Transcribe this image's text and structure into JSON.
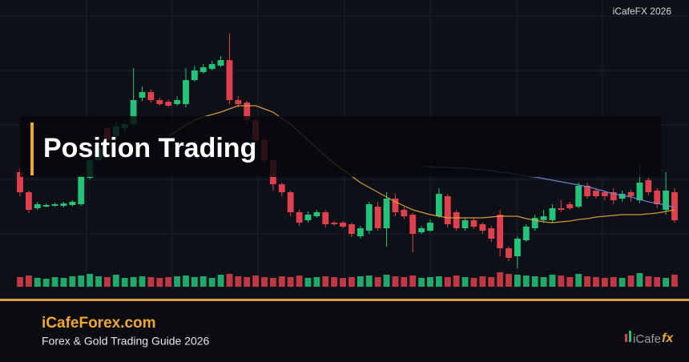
{
  "watermark": "iCafeFX 2026",
  "title": "Position Trading",
  "footer": {
    "site": "iCafeForex.com",
    "tagline": "Forex & Gold Trading Guide 2026",
    "logo": "iCafe",
    "logo_accent": "fx"
  },
  "chart_data": {
    "type": "candlestick",
    "ylim": [
      0,
      370
    ],
    "volume_lim": [
      0,
      20
    ],
    "up_color": "#22c47a",
    "down_color": "#e0404e",
    "ohlc": [
      [
        155,
        160,
        125,
        130
      ],
      [
        130,
        132,
        104,
        108
      ],
      [
        110,
        118,
        108,
        115
      ],
      [
        112,
        116,
        111,
        114
      ],
      [
        113,
        117,
        112,
        115
      ],
      [
        113,
        118,
        111,
        116
      ],
      [
        114,
        120,
        112,
        118
      ],
      [
        115,
        152,
        113,
        150
      ],
      [
        148,
        174,
        146,
        170
      ],
      [
        170,
        190,
        168,
        185
      ],
      [
        210,
        212,
        190,
        195
      ],
      [
        200,
        218,
        198,
        212
      ],
      [
        210,
        220,
        205,
        215
      ],
      [
        215,
        285,
        210,
        245
      ],
      [
        248,
        262,
        244,
        255
      ],
      [
        255,
        258,
        242,
        245
      ],
      [
        245,
        248,
        238,
        240
      ],
      [
        243,
        246,
        236,
        238
      ],
      [
        240,
        250,
        238,
        245
      ],
      [
        240,
        285,
        236,
        270
      ],
      [
        270,
        288,
        268,
        282
      ],
      [
        280,
        290,
        278,
        286
      ],
      [
        284,
        294,
        282,
        290
      ],
      [
        288,
        300,
        286,
        295
      ],
      [
        295,
        328,
        240,
        245
      ],
      [
        245,
        250,
        236,
        240
      ],
      [
        242,
        244,
        215,
        220
      ],
      [
        220,
        222,
        190,
        195
      ],
      [
        195,
        198,
        165,
        170
      ],
      [
        170,
        172,
        132,
        140
      ],
      [
        140,
        142,
        125,
        130
      ],
      [
        130,
        132,
        100,
        105
      ],
      [
        105,
        108,
        88,
        92
      ],
      [
        95,
        106,
        92,
        102
      ],
      [
        100,
        108,
        98,
        105
      ],
      [
        105,
        108,
        86,
        90
      ],
      [
        92,
        94,
        88,
        90
      ],
      [
        92,
        94,
        85,
        87
      ],
      [
        90,
        92,
        74,
        78
      ],
      [
        75,
        88,
        72,
        85
      ],
      [
        82,
        118,
        78,
        115
      ],
      [
        112,
        118,
        82,
        85
      ],
      [
        85,
        130,
        62,
        122
      ],
      [
        122,
        128,
        100,
        105
      ],
      [
        108,
        112,
        96,
        100
      ],
      [
        102,
        104,
        55,
        78
      ],
      [
        80,
        88,
        78,
        85
      ],
      [
        82,
        96,
        80,
        92
      ],
      [
        100,
        135,
        98,
        128
      ],
      [
        125,
        128,
        86,
        90
      ],
      [
        105,
        108,
        82,
        85
      ],
      [
        85,
        98,
        82,
        95
      ],
      [
        95,
        98,
        84,
        87
      ],
      [
        90,
        92,
        78,
        82
      ],
      [
        85,
        88,
        68,
        72
      ],
      [
        102,
        108,
        50,
        60
      ],
      [
        60,
        62,
        44,
        48
      ],
      [
        50,
        75,
        35,
        72
      ],
      [
        70,
        90,
        68,
        87
      ],
      [
        85,
        102,
        82,
        98
      ],
      [
        95,
        108,
        92,
        100
      ],
      [
        95,
        115,
        92,
        110
      ],
      [
        110,
        120,
        105,
        108
      ],
      [
        115,
        118,
        108,
        110
      ],
      [
        112,
        142,
        110,
        138
      ],
      [
        138,
        142,
        122,
        125
      ],
      [
        132,
        135,
        122,
        125
      ],
      [
        130,
        132,
        120,
        125
      ],
      [
        130,
        135,
        115,
        120
      ],
      [
        122,
        132,
        118,
        128
      ],
      [
        130,
        133,
        118,
        125
      ],
      [
        120,
        165,
        116,
        142
      ],
      [
        145,
        148,
        126,
        130
      ],
      [
        132,
        135,
        110,
        115
      ],
      [
        108,
        155,
        102,
        132
      ],
      [
        130,
        135,
        92,
        95
      ]
    ],
    "volume": [
      12,
      14,
      11,
      10,
      12,
      11,
      13,
      14,
      16,
      13,
      12,
      15,
      11,
      12,
      13,
      12,
      11,
      12,
      13,
      14,
      12,
      13,
      11,
      15,
      16,
      13,
      12,
      14,
      12,
      11,
      13,
      12,
      14,
      11,
      12,
      13,
      12,
      11,
      12,
      13,
      14,
      12,
      15,
      13,
      12,
      14,
      11,
      12,
      13,
      12,
      14,
      12,
      11,
      13,
      12,
      18,
      16,
      15,
      14,
      13,
      12,
      15,
      14,
      12,
      16,
      13,
      12,
      11,
      12,
      11,
      14,
      17,
      13,
      12,
      11,
      15
    ],
    "series": [
      {
        "color": "#e8a838",
        "values": [
          null,
          null,
          null,
          null,
          null,
          null,
          null,
          null,
          null,
          null,
          null,
          null,
          null,
          null,
          null,
          null,
          null,
          200,
          207,
          214,
          220,
          224,
          227,
          230,
          234,
          238,
          238,
          238,
          234,
          230,
          222,
          215,
          205,
          195,
          185,
          175,
          166,
          158,
          150,
          142,
          136,
          130,
          124,
          118,
          113,
          108,
          105,
          102,
          100,
          98,
          98,
          98,
          98,
          98,
          99,
          100,
          100,
          100,
          97,
          95,
          93,
          92,
          93,
          94,
          96,
          97,
          99,
          100,
          101,
          102,
          102,
          102,
          103,
          104,
          106,
          108
        ]
      },
      {
        "color": "#6f8fd8",
        "values": [
          null,
          null,
          null,
          null,
          null,
          null,
          null,
          null,
          null,
          null,
          null,
          null,
          null,
          null,
          null,
          null,
          null,
          null,
          null,
          null,
          null,
          null,
          null,
          null,
          null,
          null,
          null,
          null,
          null,
          null,
          null,
          null,
          null,
          null,
          null,
          null,
          null,
          null,
          null,
          null,
          null,
          null,
          null,
          null,
          null,
          null,
          162,
          162,
          161,
          161,
          160,
          160,
          159,
          158,
          157,
          155,
          154,
          152,
          150,
          149,
          147,
          145,
          143,
          141,
          139,
          137,
          134,
          131,
          128,
          126,
          124,
          121,
          118,
          116,
          114,
          111
        ]
      }
    ]
  }
}
